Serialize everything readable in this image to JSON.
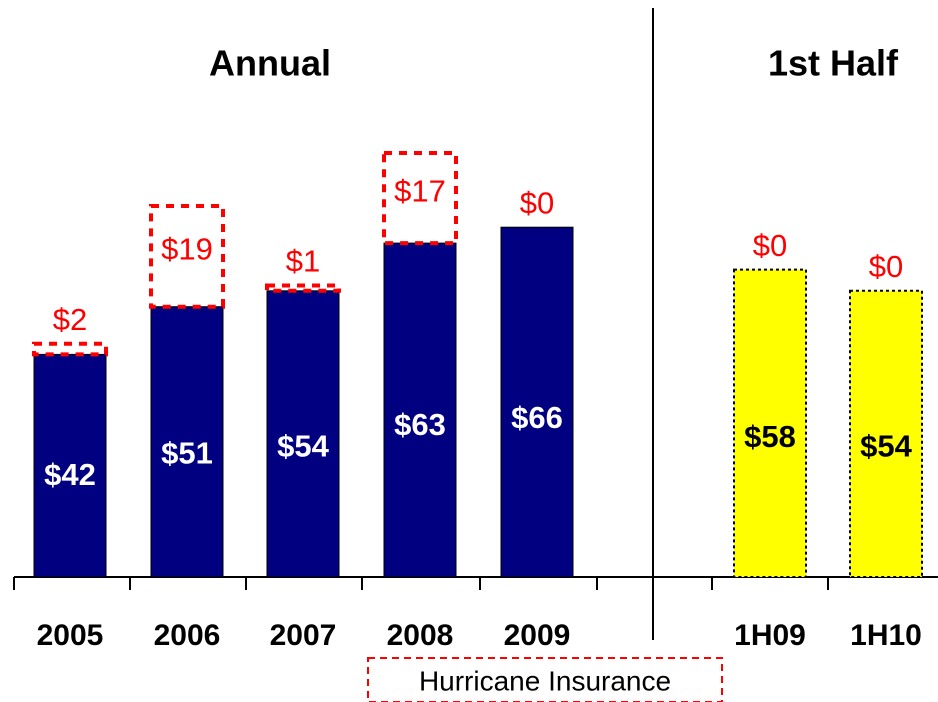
{
  "chart_data": {
    "type": "bar",
    "stacked": true,
    "groups": [
      {
        "title": "Annual",
        "categories": [
          "2005",
          "2006",
          "2007",
          "2008",
          "2009"
        ],
        "series": [
          {
            "color": "#000080",
            "label_color": "#ffffff",
            "values": [
              42,
              51,
              54,
              63,
              66
            ],
            "value_labels": [
              "$42",
              "$51",
              "$54",
              "$63",
              "$66"
            ]
          },
          {
            "name": "Hurricane Insurance",
            "color": "#ff0000",
            "values": [
              2,
              19,
              1,
              17,
              0
            ],
            "value_labels": [
              "$2",
              "$19",
              "$1",
              "$17",
              "$0"
            ]
          }
        ]
      },
      {
        "title": "1st Half",
        "categories": [
          "1H09",
          "1H10"
        ],
        "series": [
          {
            "color": "#ffff00",
            "label_color": "#000000",
            "values": [
              58,
              54
            ],
            "value_labels": [
              "$58",
              "$54"
            ]
          },
          {
            "name": "Hurricane Insurance",
            "color": "#ff0000",
            "values": [
              0,
              0
            ],
            "value_labels": [
              "$0",
              "$0"
            ]
          }
        ]
      }
    ]
  }
}
